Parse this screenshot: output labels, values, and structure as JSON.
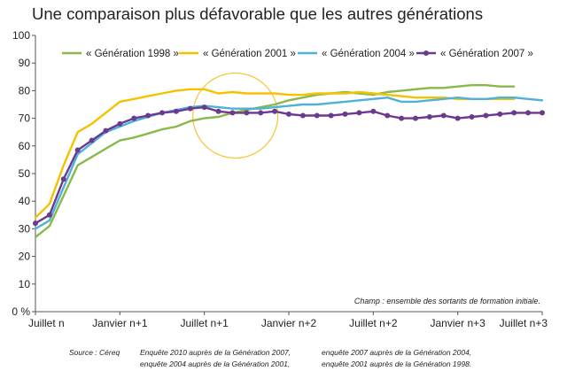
{
  "title": "Une comparaison plus défavorable que les autres générations",
  "chart_data": {
    "type": "line",
    "ylim": [
      0,
      100
    ],
    "y_ticks": [
      {
        "value": 0,
        "label": "0 %"
      },
      {
        "value": 10,
        "label": "10"
      },
      {
        "value": 20,
        "label": "20"
      },
      {
        "value": 30,
        "label": "30"
      },
      {
        "value": 40,
        "label": "40"
      },
      {
        "value": 50,
        "label": "50"
      },
      {
        "value": 60,
        "label": "60"
      },
      {
        "value": 70,
        "label": "70"
      },
      {
        "value": 80,
        "label": "80"
      },
      {
        "value": 90,
        "label": "90"
      },
      {
        "value": 100,
        "label": "100"
      }
    ],
    "x_range": [
      0,
      36
    ],
    "x_ticks": [
      {
        "value": 0,
        "label": "Juillet n"
      },
      {
        "value": 6,
        "label": "Janvier n+1"
      },
      {
        "value": 12,
        "label": "Juillet n+1"
      },
      {
        "value": 18,
        "label": "Janvier n+2"
      },
      {
        "value": 24,
        "label": "Juillet n+2"
      },
      {
        "value": 30,
        "label": "Janvier n+3"
      },
      {
        "value": 36,
        "label": "Juillet n+3"
      }
    ],
    "grid": false,
    "legend_position": "top",
    "annotation": "Champ : ensemble des sortants de formation initiale.",
    "highlight_circle": {
      "center_x": 14.2,
      "center_y": 71,
      "color": "#f5c842"
    },
    "series": [
      {
        "name": "« Génération 1998 »",
        "color": "#8ab84a",
        "markers": false,
        "x": [
          0,
          1,
          2,
          3,
          4,
          5,
          6,
          7,
          8,
          9,
          10,
          11,
          12,
          13,
          14,
          15,
          16,
          17,
          18,
          19,
          20,
          21,
          22,
          23,
          24,
          25,
          26,
          27,
          28,
          29,
          30,
          31,
          32,
          33,
          34
        ],
        "y": [
          27,
          31,
          42,
          53,
          56,
          59,
          62,
          63,
          64.5,
          66,
          67,
          69,
          70,
          70.5,
          72,
          73,
          74,
          75,
          76.5,
          77.5,
          78.5,
          79,
          79.5,
          79,
          78.5,
          79.5,
          80,
          80.5,
          81,
          81,
          81.5,
          82,
          82,
          81.5,
          81.5
        ]
      },
      {
        "name": "« Génération 2001 »",
        "color": "#f5c200",
        "markers": false,
        "x": [
          0,
          1,
          2,
          3,
          4,
          5,
          6,
          7,
          8,
          9,
          10,
          11,
          12,
          13,
          14,
          15,
          16,
          17,
          18,
          19,
          20,
          21,
          22,
          23,
          24,
          25,
          26,
          27,
          28,
          29,
          30,
          31,
          32,
          33,
          34
        ],
        "y": [
          34,
          39,
          53,
          65,
          68,
          72,
          76,
          77,
          78,
          79,
          80,
          80.5,
          80.5,
          79,
          79.5,
          79,
          79,
          79,
          78.5,
          78.5,
          79,
          79,
          79,
          79.5,
          79,
          78.5,
          78,
          77.5,
          77.5,
          77.5,
          77,
          77,
          77,
          77,
          77
        ]
      },
      {
        "name": "« Génération 2004 »",
        "color": "#4fb0d8",
        "markers": false,
        "x": [
          0,
          1,
          2,
          3,
          4,
          5,
          6,
          7,
          8,
          9,
          10,
          11,
          12,
          13,
          14,
          15,
          16,
          17,
          18,
          19,
          20,
          21,
          22,
          23,
          24,
          25,
          26,
          27,
          28,
          29,
          30,
          31,
          32,
          33,
          34,
          35,
          36
        ],
        "y": [
          30,
          33,
          45,
          57,
          61,
          65,
          67,
          69,
          70.5,
          72,
          73,
          74,
          74.5,
          74,
          73.5,
          73.5,
          73.5,
          74,
          74.5,
          75,
          75,
          75.5,
          76,
          76.5,
          77,
          77.5,
          76,
          76,
          76.5,
          77,
          77.5,
          77,
          77,
          77.5,
          77.5,
          77,
          76.5
        ]
      },
      {
        "name": "« Génération 2007 »",
        "color": "#6b3a8e",
        "markers": true,
        "x": [
          0,
          1,
          2,
          3,
          4,
          5,
          6,
          7,
          8,
          9,
          10,
          11,
          12,
          13,
          14,
          15,
          16,
          17,
          18,
          19,
          20,
          21,
          22,
          23,
          24,
          25,
          26,
          27,
          28,
          29,
          30,
          31,
          32,
          33,
          34,
          35,
          36
        ],
        "y": [
          32,
          35,
          48,
          58.5,
          62,
          65.5,
          68,
          70,
          71,
          72,
          72.5,
          73.5,
          74,
          72.5,
          72,
          72,
          72,
          72.5,
          71.5,
          71,
          71,
          71,
          71.5,
          72,
          72.5,
          71,
          70,
          70,
          70.5,
          71,
          70,
          70.5,
          71,
          71.5,
          72,
          72,
          72
        ]
      }
    ]
  },
  "source": {
    "label": "Source : Céreq",
    "lines": [
      "Enquête 2010 auprès de la Génération 2007,",
      "enquête 2004 auprès de la Génération 2001,",
      "enquête 2007 auprès de la Génération 2004,",
      "enquête 2001 auprès de la Génération 1998."
    ]
  }
}
